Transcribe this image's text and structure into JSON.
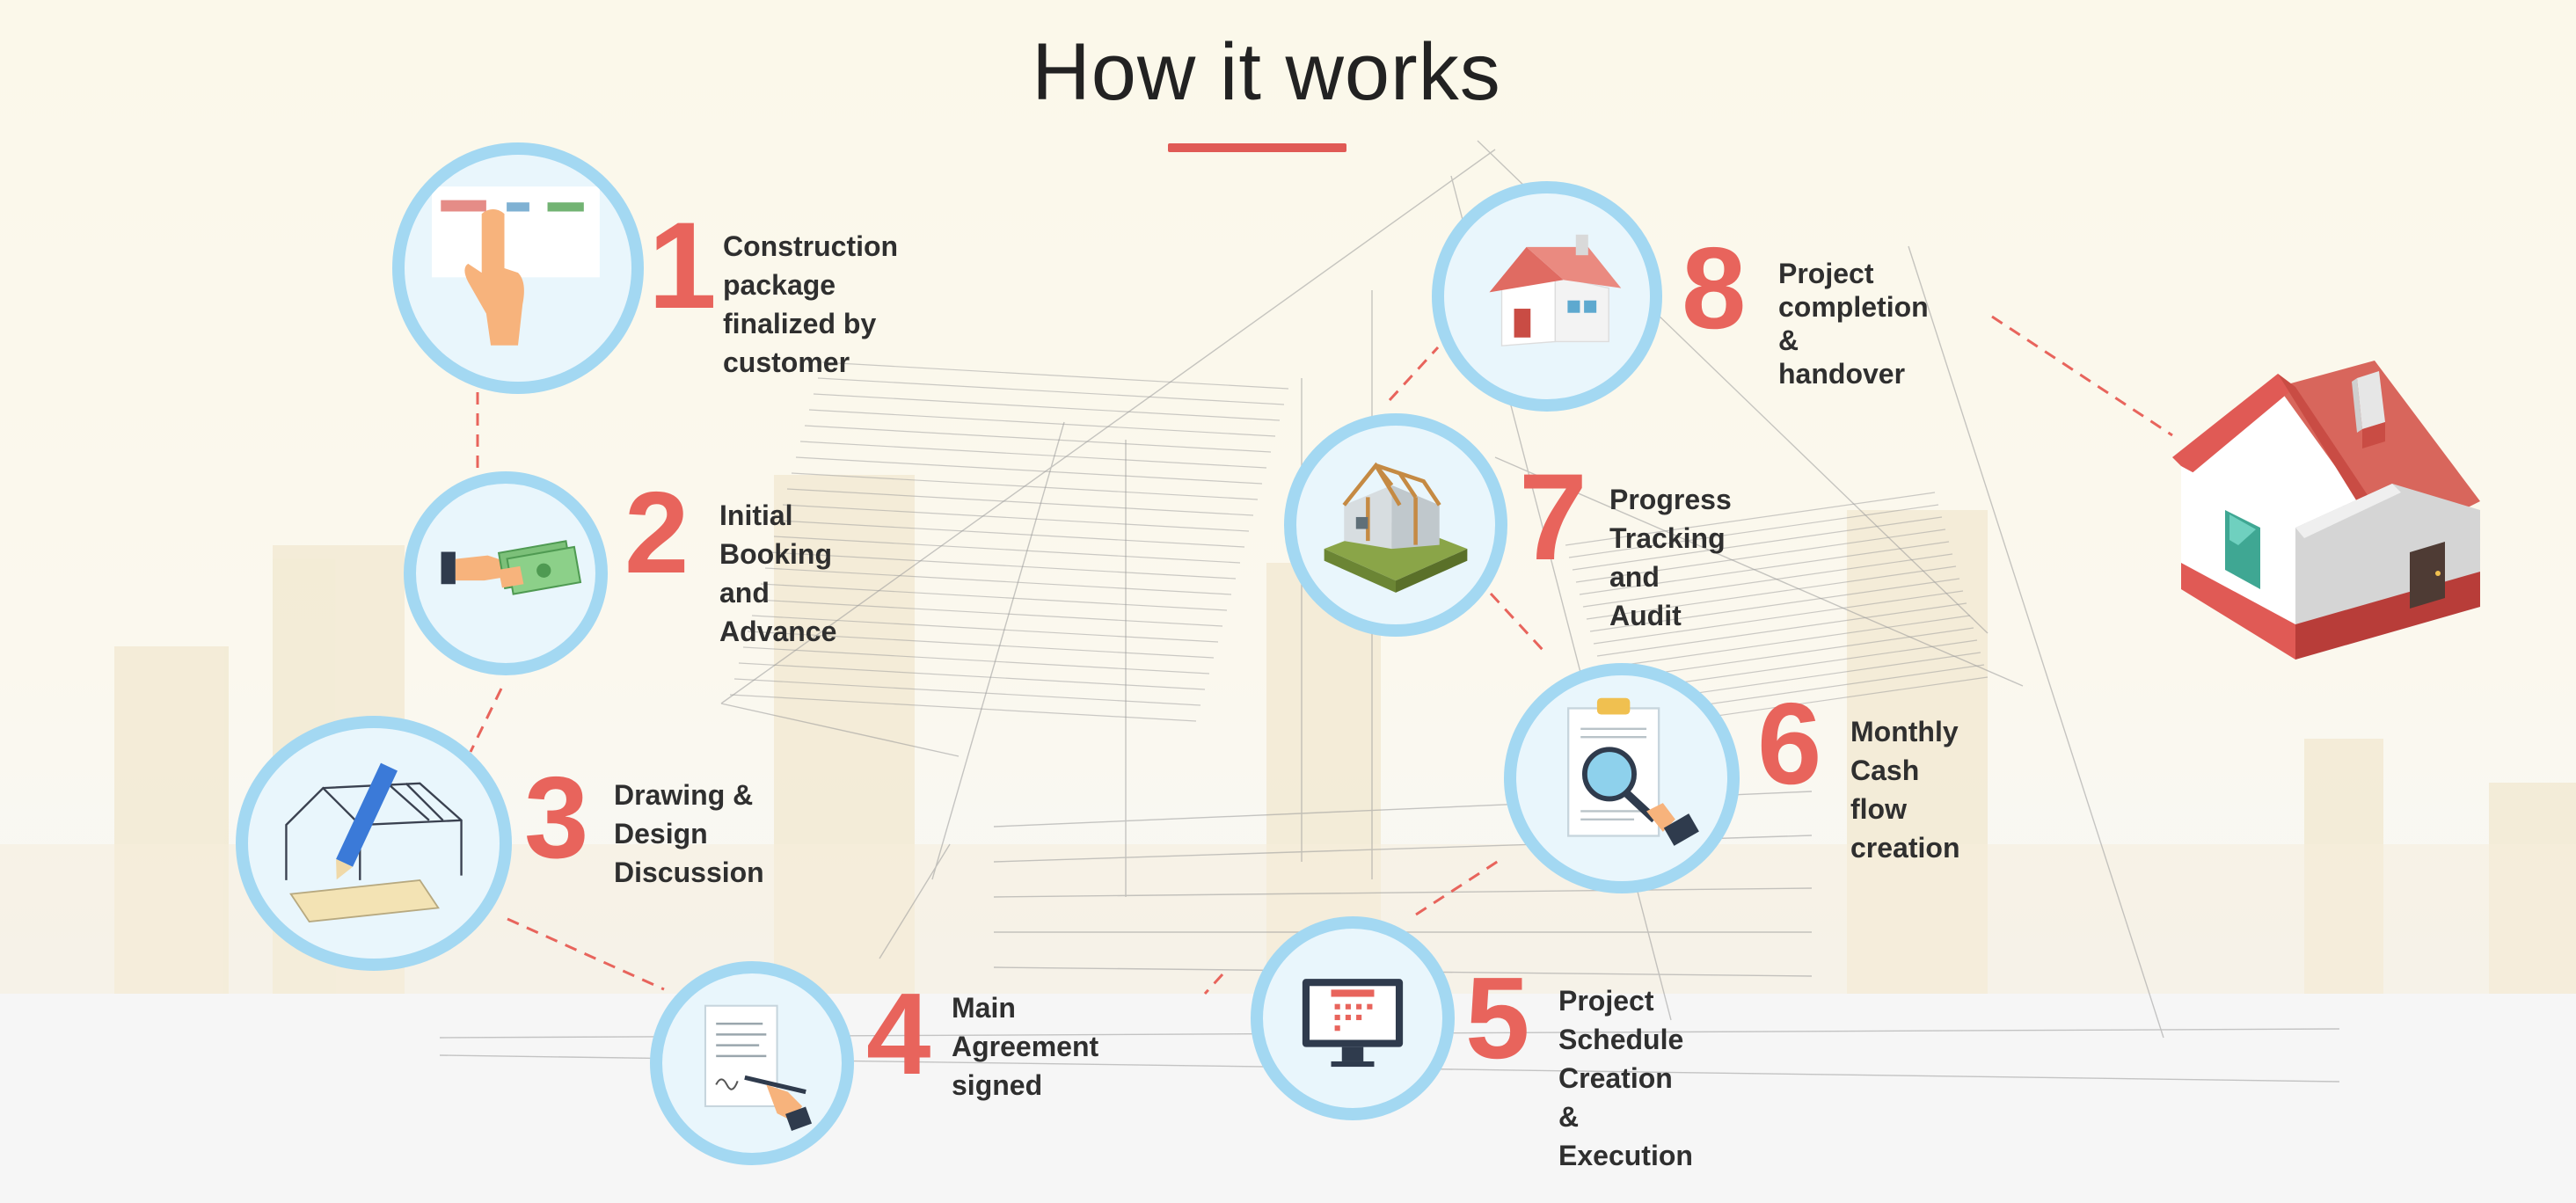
{
  "title": "How it works",
  "steps": [
    {
      "number": "1",
      "label": "Construction package\nfinalized by customer",
      "icon": "pointer-hand-icon"
    },
    {
      "number": "2",
      "label": "Initial Booking and\nAdvance",
      "icon": "handshake-money-icon"
    },
    {
      "number": "3",
      "label": "Drawing &\nDesign Discussion",
      "icon": "blueprint-pencil-icon"
    },
    {
      "number": "4",
      "label": "Main Agreement\nsigned",
      "icon": "signing-document-icon"
    },
    {
      "number": "5",
      "label": "Project Schedule\nCreation & Execution",
      "icon": "monitor-calendar-icon"
    },
    {
      "number": "6",
      "label": "Monthly Cash flow\ncreation",
      "icon": "magnifier-statement-icon"
    },
    {
      "number": "7",
      "label": "Progress Tracking\nand Audit",
      "icon": "house-frame-icon"
    },
    {
      "number": "8",
      "label": "Project completion\n & handover",
      "icon": "finished-house-icon"
    }
  ],
  "colors": {
    "accent": "#e8645c",
    "circle_border": "#a3d8f2",
    "circle_fill": "#e9f6fc",
    "text": "#2f2f2f",
    "roof": "#e06b62"
  }
}
